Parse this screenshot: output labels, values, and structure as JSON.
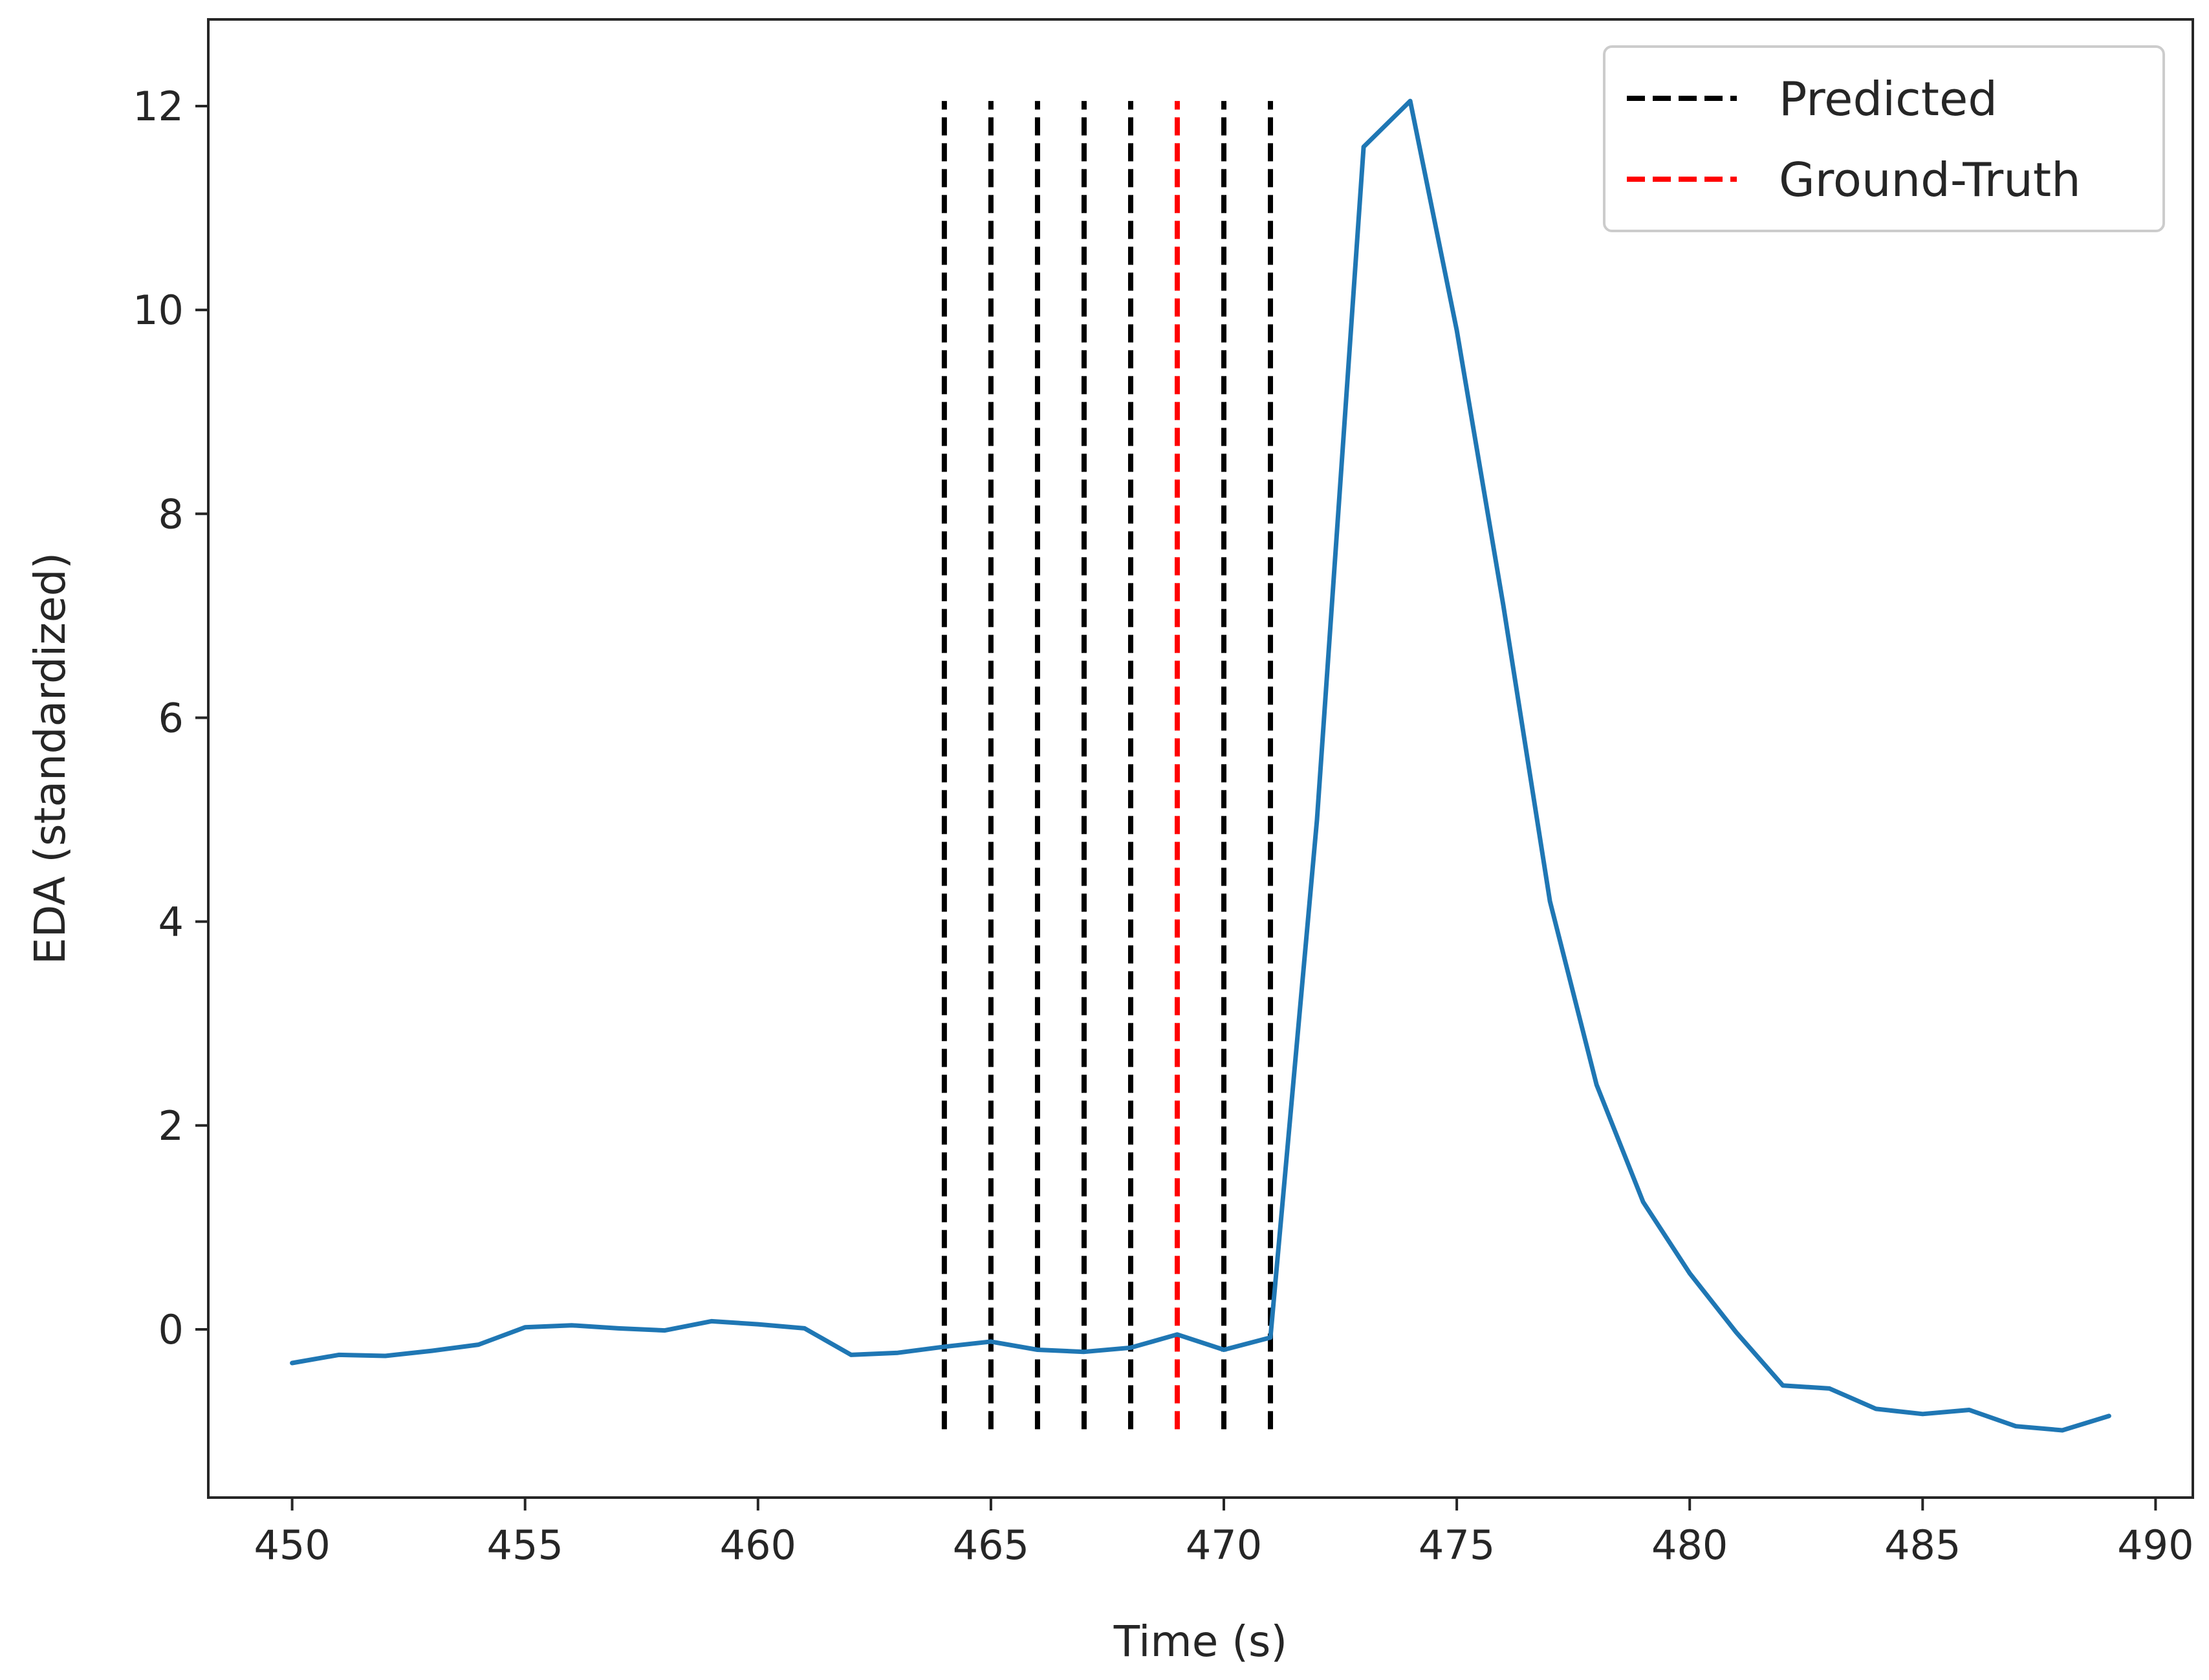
{
  "chart_data": {
    "type": "line",
    "title": "",
    "xlabel": "Time (s)",
    "ylabel": "EDA (standardized)",
    "xlim": [
      448.2,
      490.8
    ],
    "ylim": [
      -1.65,
      12.85
    ],
    "grid": false,
    "legend_position": "top-right",
    "x_ticks": [
      450,
      455,
      460,
      465,
      470,
      475,
      480,
      485,
      490
    ],
    "y_ticks": [
      0,
      2,
      4,
      6,
      8,
      10,
      12
    ],
    "series": [
      {
        "name": "",
        "color": "#1f77b4",
        "x": [
          450,
          451,
          452,
          453,
          454,
          455,
          456,
          457,
          458,
          459,
          460,
          461,
          462,
          463,
          464,
          465,
          466,
          467,
          468,
          469,
          470,
          471,
          472,
          473,
          474,
          475,
          476,
          477,
          478,
          479,
          480,
          481,
          482,
          483,
          484,
          485,
          486,
          487,
          488,
          489
        ],
        "y": [
          -0.33,
          -0.25,
          -0.26,
          -0.21,
          -0.15,
          0.02,
          0.04,
          0.01,
          -0.01,
          0.08,
          0.05,
          0.01,
          -0.25,
          -0.23,
          -0.17,
          -0.12,
          -0.2,
          -0.22,
          -0.18,
          -0.05,
          -0.2,
          -0.08,
          5.0,
          11.6,
          12.05,
          9.8,
          7.1,
          4.2,
          2.4,
          1.25,
          0.55,
          -0.03,
          -0.55,
          -0.58,
          -0.78,
          -0.83,
          -0.79,
          -0.95,
          -0.99,
          -0.85
        ]
      }
    ],
    "vlines": [
      {
        "series": "Predicted",
        "x": [
          464,
          465,
          466,
          467,
          468,
          470,
          471
        ],
        "ymin": -0.98,
        "ymax": 12.05,
        "color": "#000000",
        "style": "dashed"
      },
      {
        "series": "Ground-Truth",
        "x": [
          469
        ],
        "ymin": -0.98,
        "ymax": 12.05,
        "color": "#ff0000",
        "style": "dashed"
      }
    ],
    "legend": [
      {
        "label": "Predicted",
        "color": "#000000",
        "style": "dashed"
      },
      {
        "label": "Ground-Truth",
        "color": "#ff0000",
        "style": "dashed"
      }
    ]
  }
}
